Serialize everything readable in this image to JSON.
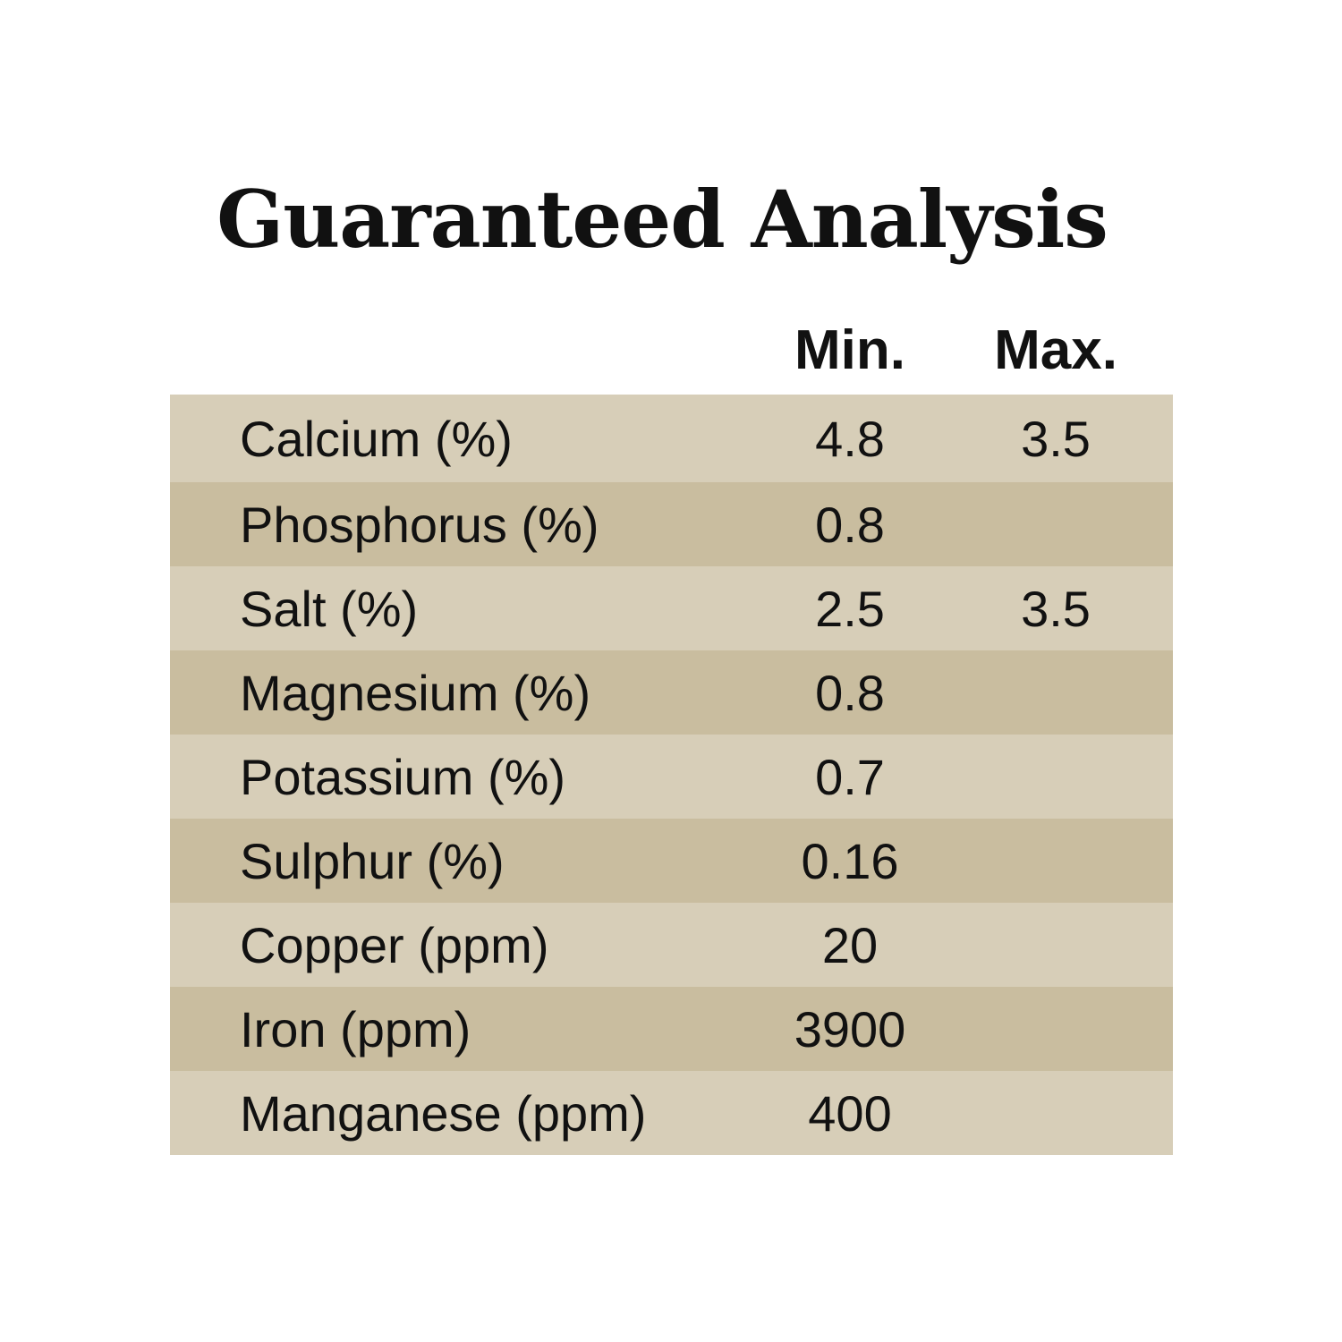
{
  "title": "Guaranteed Analysis",
  "columns": {
    "min": "Min.",
    "max": "Max."
  },
  "rows": [
    {
      "name": "Calcium (%)",
      "min": "4.8",
      "max": "3.5"
    },
    {
      "name": "Phosphorus (%)",
      "min": "0.8",
      "max": ""
    },
    {
      "name": "Salt (%)",
      "min": "2.5",
      "max": "3.5"
    },
    {
      "name": "Magnesium (%)",
      "min": "0.8",
      "max": ""
    },
    {
      "name": "Potassium (%)",
      "min": "0.7",
      "max": ""
    },
    {
      "name": "Sulphur (%)",
      "min": "0.16",
      "max": ""
    },
    {
      "name": "Copper (ppm)",
      "min": "20",
      "max": ""
    },
    {
      "name": "Iron (ppm)",
      "min": "3900",
      "max": ""
    },
    {
      "name": "Manganese (ppm)",
      "min": "400",
      "max": ""
    }
  ],
  "colors": {
    "row_light": "#d7ceb8",
    "row_dark": "#c9bd9f",
    "text": "#111111"
  }
}
